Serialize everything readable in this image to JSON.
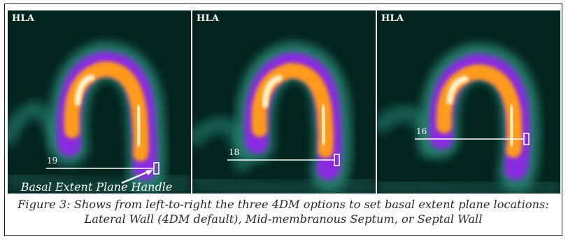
{
  "panels": [
    {
      "label": "HLA",
      "plane_value": "19",
      "annotation": "Basal Extent Plane Handle"
    },
    {
      "label": "HLA",
      "plane_value": "18"
    },
    {
      "label": "HLA",
      "plane_value": "16"
    }
  ],
  "caption": {
    "line1": "Figure 3: Shows from left-to-right the three 4DM options to set basal extent plane locations:",
    "line2": "Lateral Wall (4DM default), Mid-membranous Septum, or Septal Wall"
  },
  "colors": {
    "background": "#03231d",
    "tissue_teal": "#2a8a78",
    "purple": "#8a2ce0",
    "orange": "#ff9a1e",
    "hot_center": "#fff2c8"
  }
}
